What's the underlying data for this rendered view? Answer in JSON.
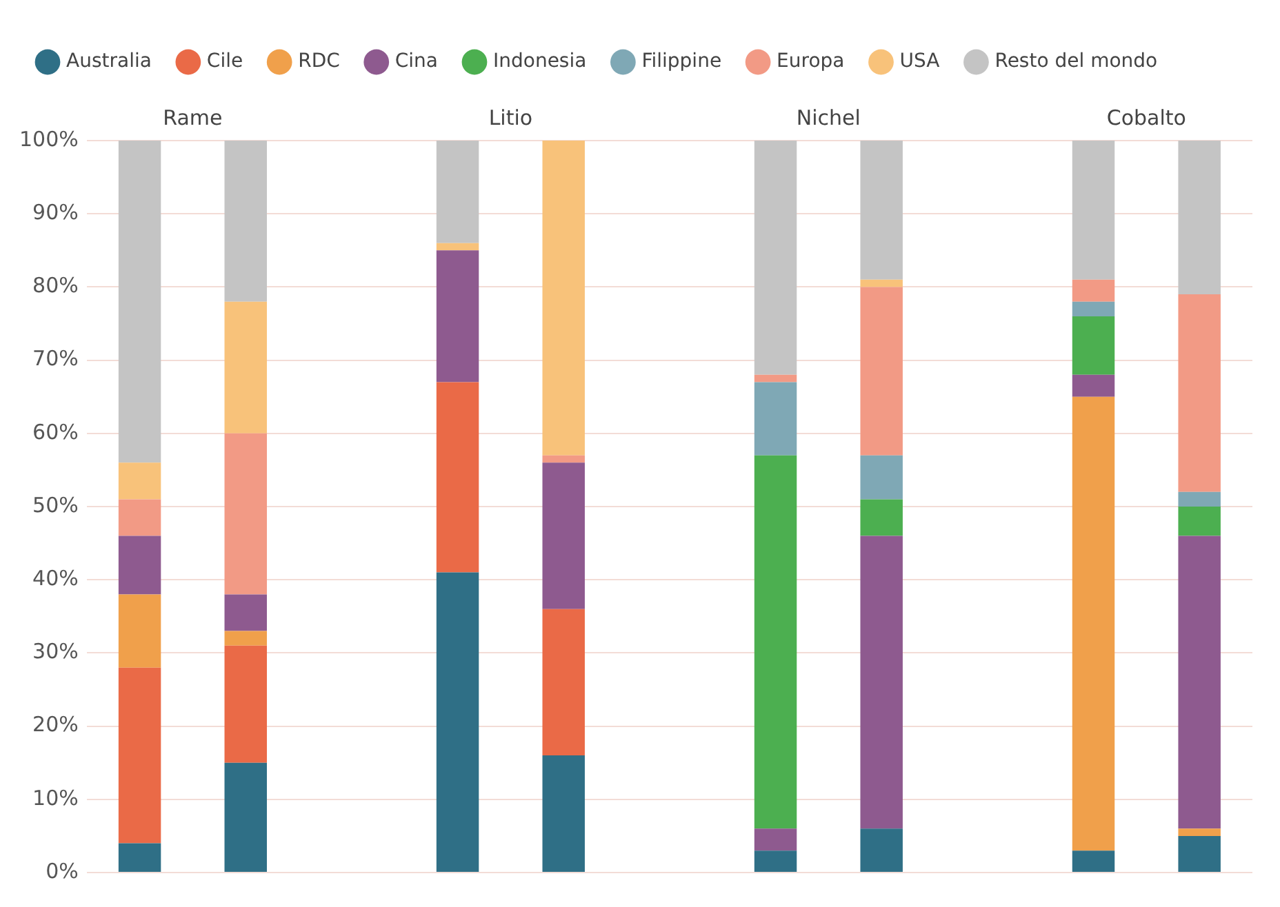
{
  "chart_data": {
    "type": "bar",
    "stacked": true,
    "categories": [
      null,
      null,
      null,
      null,
      null,
      null,
      null,
      null
    ],
    "annotations": [
      "Rame",
      "Litio",
      "Nichel",
      "Cobalto"
    ],
    "ylim": [
      0,
      100
    ],
    "yticks": [
      {
        "value": 0,
        "label": "0%"
      },
      {
        "value": 10,
        "label": "10%"
      },
      {
        "value": 20,
        "label": "20%"
      },
      {
        "value": 30,
        "label": "30%"
      },
      {
        "value": 40,
        "label": "40%"
      },
      {
        "value": 50,
        "label": "50%"
      },
      {
        "value": 60,
        "label": "60%"
      },
      {
        "value": 70,
        "label": "70%"
      },
      {
        "value": 80,
        "label": "80%"
      },
      {
        "value": 90,
        "label": "90%"
      },
      {
        "value": 100,
        "label": "100%"
      }
    ],
    "grid": "y",
    "legend": "top left",
    "tick_labels": "y",
    "series": [
      {
        "name": "Australia",
        "color": "#2f6f86",
        "values": [
          4,
          15,
          41,
          16,
          3,
          6,
          3,
          5
        ]
      },
      {
        "name": "Cile",
        "color": "#ea6a47",
        "values": [
          24,
          16,
          26,
          20,
          0,
          0,
          0,
          0
        ]
      },
      {
        "name": "RDC",
        "color": "#f0a04b",
        "values": [
          10,
          2,
          0,
          0,
          0,
          0,
          62,
          1
        ]
      },
      {
        "name": "Cina",
        "color": "#8e5a8f",
        "values": [
          8,
          5,
          18,
          20,
          3,
          40,
          3,
          40
        ]
      },
      {
        "name": "Indonesia",
        "color": "#4caf50",
        "values": [
          0,
          0,
          0,
          0,
          51,
          5,
          8,
          4
        ]
      },
      {
        "name": "Filippine",
        "color": "#7fa8b5",
        "values": [
          0,
          0,
          0,
          0,
          10,
          6,
          2,
          2
        ]
      },
      {
        "name": "Europa",
        "color": "#f29a85",
        "values": [
          5,
          22,
          0,
          1,
          1,
          23,
          3,
          27
        ]
      },
      {
        "name": "USA",
        "color": "#f8c27a",
        "values": [
          5,
          18,
          1,
          43,
          0,
          1,
          0,
          0
        ]
      },
      {
        "name": "Resto del mondo",
        "color": "#c4c4c4",
        "values": [
          44,
          22,
          14,
          0,
          32,
          19,
          19,
          21
        ]
      }
    ]
  }
}
